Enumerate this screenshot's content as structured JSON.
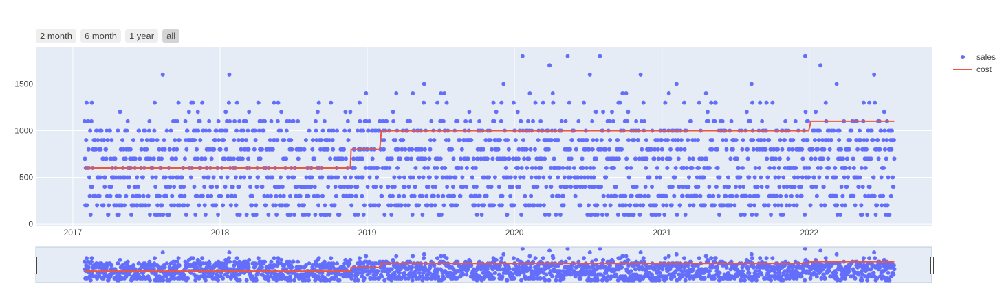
{
  "range_selector": {
    "buttons": [
      {
        "label": "2 month",
        "active": false
      },
      {
        "label": "6 month",
        "active": false
      },
      {
        "label": "1 year",
        "active": false
      },
      {
        "label": "all",
        "active": true
      }
    ]
  },
  "colors": {
    "sales": "#636efa",
    "cost": "#ef553b",
    "plot_bg": "#e5ecf6",
    "grid": "#ffffff"
  },
  "chart_data": {
    "type": "scatter",
    "title": "",
    "xlabel": "",
    "ylabel": "",
    "x_range": [
      "2016-10-01",
      "2022-11-01"
    ],
    "ylim": [
      -25,
      1900
    ],
    "x_ticks": [
      "2017",
      "2018",
      "2019",
      "2020",
      "2021",
      "2022"
    ],
    "y_ticks": [
      0,
      500,
      1000,
      1500
    ],
    "grid": true,
    "legend_position": "top-right",
    "x_start": "2017-01-30",
    "x_end": "2022-07-31",
    "series": [
      {
        "name": "sales",
        "mode": "markers",
        "note": "daily sales values scattered between about 100 and 1800 from 2017-01-30 to 2022-07-31",
        "value_range": [
          100,
          1800
        ]
      },
      {
        "name": "cost",
        "mode": "lines",
        "shape": "step",
        "points": [
          {
            "x": "2017-01-30",
            "y": 600
          },
          {
            "x": "2018-11-20",
            "y": 600
          },
          {
            "x": "2018-11-22",
            "y": 800
          },
          {
            "x": "2019-02-01",
            "y": 800
          },
          {
            "x": "2019-02-05",
            "y": 1000
          },
          {
            "x": "2021-12-31",
            "y": 1000
          },
          {
            "x": "2022-01-05",
            "y": 1100
          },
          {
            "x": "2022-07-31",
            "y": 1100
          }
        ]
      }
    ]
  }
}
